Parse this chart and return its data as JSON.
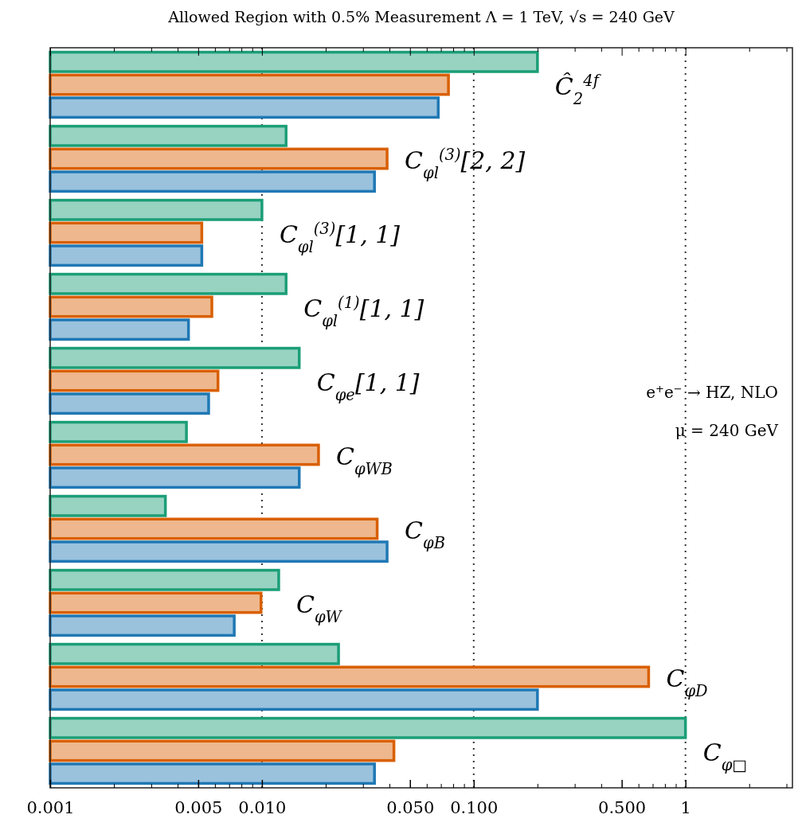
{
  "chart_data": {
    "type": "bar",
    "orientation": "horizontal",
    "title": "Allowed Region with 0.5% Measurement Λ = 1 TeV, √s = 240 GeV",
    "categories": [
      "Ĉ$_{2}$$^{4f}$",
      "C$_{φl}$$^{(3)}$[2, 2]",
      "C$_{φl}$$^{(3)}$[1, 1]",
      "C$_{φl}$$^{(1)}$[1, 1]",
      "C$_{φe}$[1, 1]",
      "C$_{φWB}$",
      "C$_{φB}$",
      "C$_{φW}$",
      "C$_{φD}$",
      "C$_{φ□}$"
    ],
    "series": [
      {
        "color": "#1b9e77",
        "values": [
          0.2,
          0.013,
          0.01,
          0.013,
          0.015,
          0.0044,
          0.0035,
          0.012,
          0.023,
          1.0
        ]
      },
      {
        "color": "#d95f02",
        "values": [
          0.076,
          0.039,
          0.0052,
          0.0058,
          0.0062,
          0.0185,
          0.035,
          0.0099,
          0.67,
          0.042
        ]
      },
      {
        "color": "#1f78b4",
        "values": [
          0.068,
          0.034,
          0.0052,
          0.0045,
          0.0056,
          0.015,
          0.039,
          0.0074,
          0.2,
          0.034
        ]
      }
    ],
    "log": "x",
    "xlim": [
      0.001,
      3.2
    ],
    "xticks": [
      "0.001",
      {
        "value": 0.002,
        "label": null
      },
      {
        "value": 0.003,
        "label": null
      },
      {
        "value": 0.004,
        "label": null
      },
      {
        "value": 0.005,
        "label": "0.005"
      },
      {
        "value": 0.006,
        "label": null
      },
      {
        "value": 0.007,
        "label": null
      },
      {
        "value": 0.008,
        "label": null
      },
      {
        "value": 0.009,
        "label": null
      },
      {
        "value": 0.01,
        "label": "0.010"
      },
      {
        "value": 0.02,
        "label": null
      },
      {
        "value": 0.03,
        "label": null
      },
      {
        "value": 0.04,
        "label": null
      },
      {
        "value": 0.05,
        "label": "0.050"
      },
      {
        "value": 0.06,
        "label": null
      },
      {
        "value": 0.07,
        "label": null
      },
      {
        "value": 0.08,
        "label": null
      },
      {
        "value": 0.09,
        "label": null
      },
      {
        "value": 0.1,
        "label": "0.100"
      },
      {
        "value": 0.2,
        "label": null
      },
      {
        "value": 0.3,
        "label": null
      },
      {
        "value": 0.4,
        "label": null
      },
      {
        "value": 0.5,
        "label": "0.500"
      },
      {
        "value": 0.6,
        "label": null
      },
      {
        "value": 0.7,
        "label": null
      },
      {
        "value": 0.8,
        "label": null
      },
      {
        "value": 0.9,
        "label": null
      },
      1,
      {
        "value": 2,
        "label": null
      },
      {
        "value": 3,
        "label": null
      }
    ],
    "ref_lines": [
      {
        "axis": "x",
        "value": 0.01,
        "line_style": "dotted",
        "color": "#333333"
      },
      {
        "axis": "x",
        "value": 0.1,
        "line_style": "dotted",
        "color": "#333333"
      },
      {
        "axis": "x",
        "value": 1,
        "line_style": "dotted",
        "color": "#333333"
      }
    ],
    "annotations": [
      "e$^{+}$e$^{−}$ → HZ, NLO",
      "μ = 240 GeV"
    ],
    "tick_labels": "x"
  }
}
